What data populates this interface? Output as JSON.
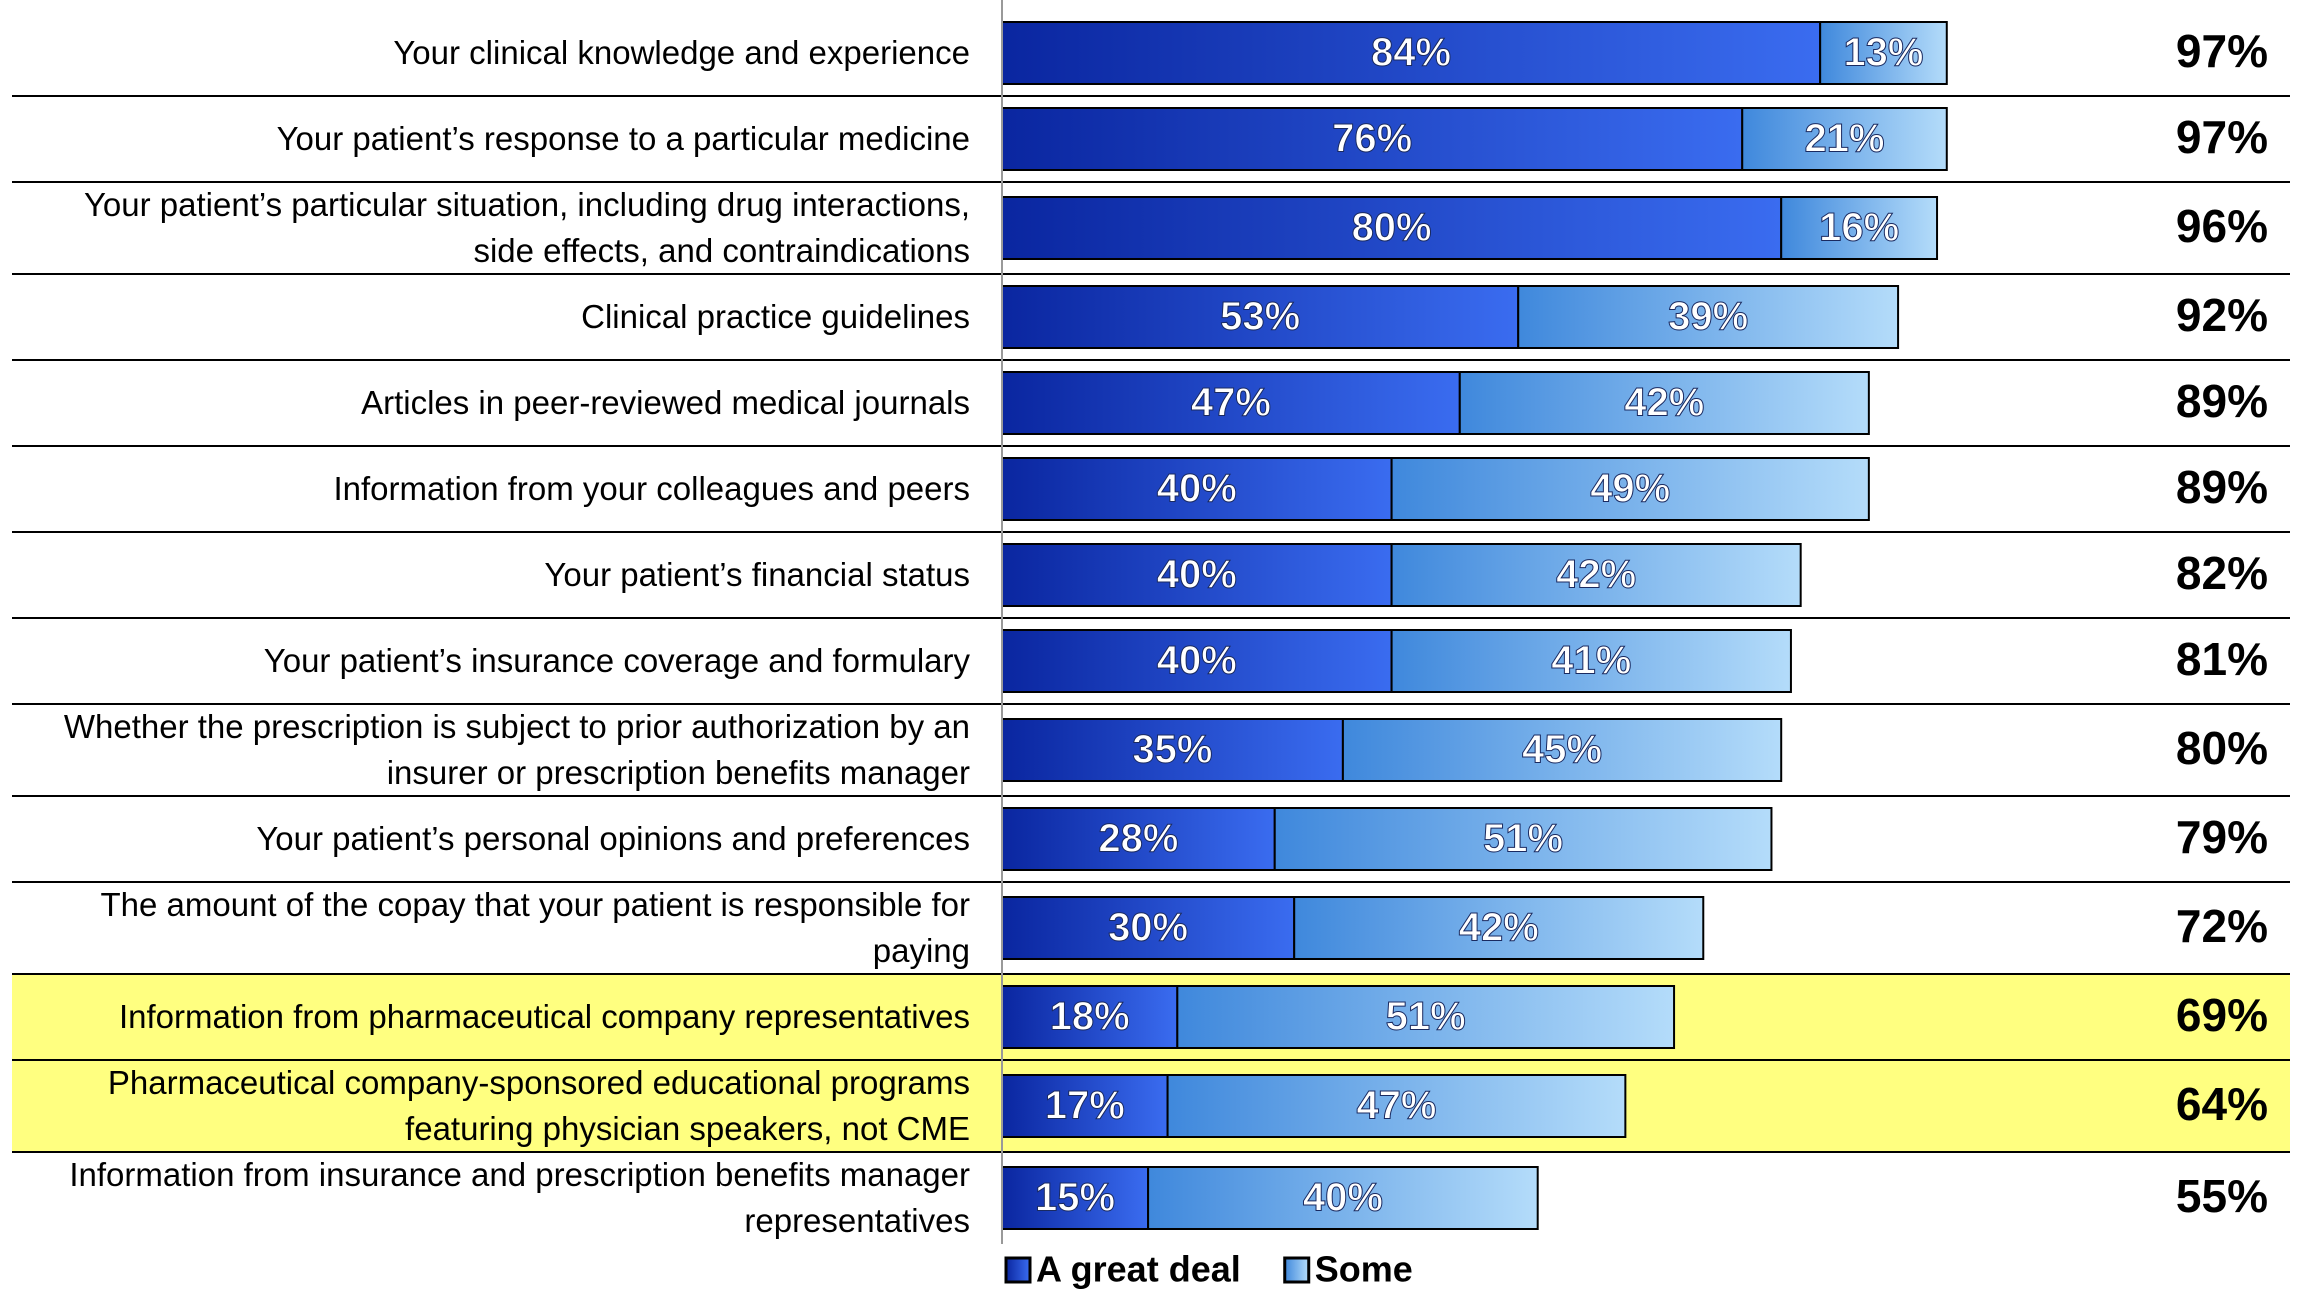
{
  "chart_data": {
    "type": "stacked-bar-horizontal",
    "categories": [
      "Your clinical knowledge and experience",
      "Your patient’s response to a particular medicine",
      "Your patient’s particular situation, including drug interactions, side effects, and contraindications",
      "Clinical practice guidelines",
      "Articles in peer-reviewed medical journals",
      "Information from your colleagues and peers",
      "Your patient’s financial status",
      "Your patient’s insurance coverage and formulary",
      "Whether the prescription is subject to prior authorization by an insurer or prescription benefits manager",
      "Your patient’s personal opinions and preferences",
      "The amount of the copay that your patient is responsible for paying",
      "Information from pharmaceutical company representatives",
      "Pharmaceutical company-sponsored educational programs featuring physician speakers, not CME",
      "Information from insurance and prescription benefits manager representatives"
    ],
    "series": [
      {
        "name": "A great deal",
        "color": "#1638c4",
        "values": [
          84,
          76,
          80,
          53,
          47,
          40,
          40,
          40,
          35,
          28,
          30,
          18,
          17,
          15
        ],
        "value_labels": [
          "84%",
          "76%",
          "80%",
          "53%",
          "47%",
          "40%",
          "40%",
          "40%",
          "35%",
          "28%",
          "30%",
          "18%",
          "17%",
          "15%"
        ]
      },
      {
        "name": "Some",
        "color": "#6aaeea",
        "values": [
          13,
          21,
          16,
          39,
          42,
          49,
          42,
          41,
          45,
          51,
          42,
          51,
          47,
          40
        ],
        "value_labels": [
          "13%",
          "21%",
          "16%",
          "39%",
          "42%",
          "49%",
          "42%",
          "41%",
          "45%",
          "51%",
          "42%",
          "51%",
          "47%",
          "40%"
        ]
      }
    ],
    "totals": [
      97,
      97,
      96,
      92,
      89,
      89,
      82,
      81,
      80,
      79,
      72,
      69,
      64,
      55
    ],
    "total_labels": [
      "97%",
      "97%",
      "96%",
      "92%",
      "89%",
      "89%",
      "82%",
      "81%",
      "80%",
      "79%",
      "72%",
      "69%",
      "64%",
      "55%"
    ],
    "xlim": [
      0,
      100
    ],
    "highlighted_rows": [
      11,
      12
    ],
    "highlight_color": "#ffff80"
  }
}
